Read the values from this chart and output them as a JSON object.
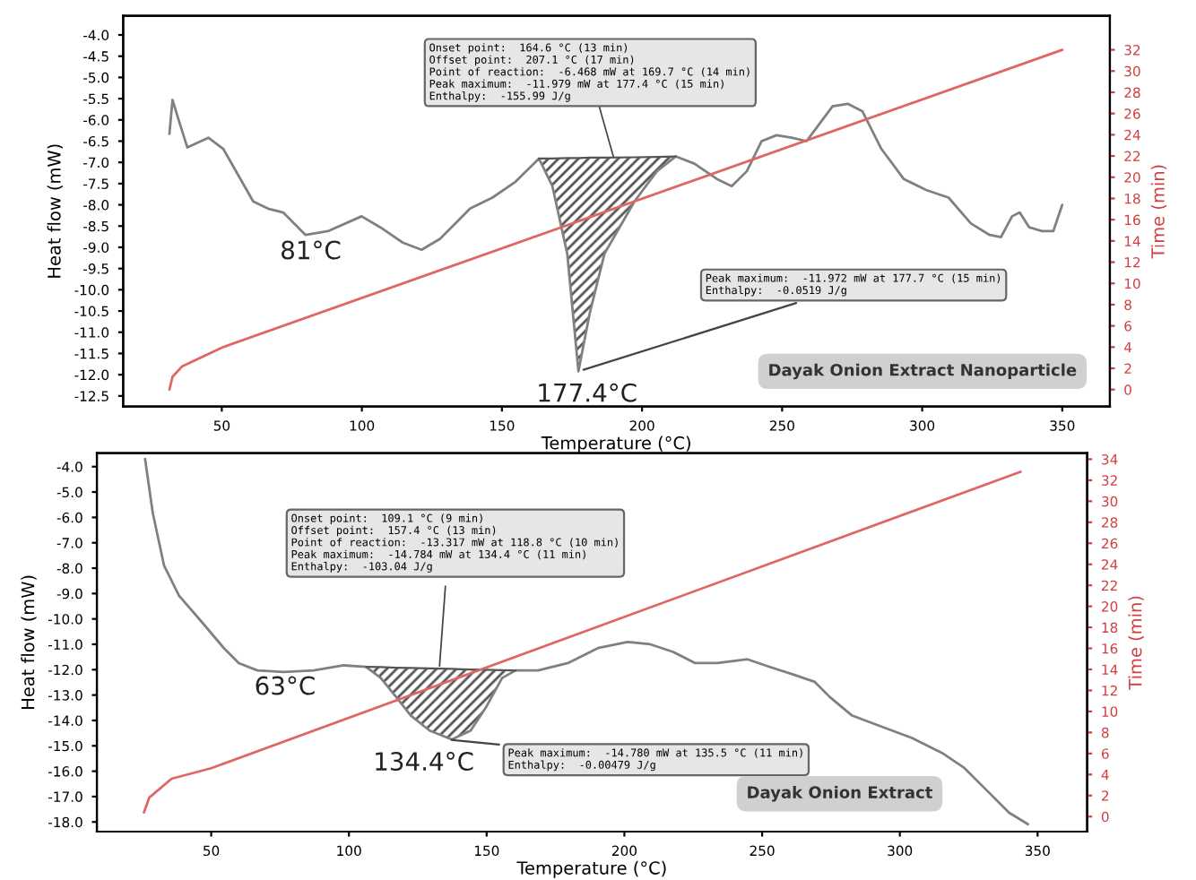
{
  "chart_data": [
    {
      "type": "line",
      "xlabel": "Temperature (°C)",
      "ylabel": "Heat flow (mW)",
      "y2label": "Time (min)",
      "xlim": [
        14.8,
        367
      ],
      "xticks": [
        50,
        100,
        150,
        200,
        250,
        300,
        350
      ],
      "ylim": [
        -12.75,
        -3.55
      ],
      "yticks": [
        {
          "value": -4.0,
          "label": "-4.0"
        },
        {
          "value": -4.5,
          "label": "-4.5"
        },
        {
          "value": -5.0,
          "label": "-5.0"
        },
        {
          "value": -5.5,
          "label": "-5.5"
        },
        {
          "value": -6.0,
          "label": "-6.0"
        },
        {
          "value": -6.5,
          "label": "-6.5"
        },
        {
          "value": -7.0,
          "label": "-7.0"
        },
        {
          "value": -7.5,
          "label": "-7.5"
        },
        {
          "value": -8.0,
          "label": "-8.0"
        },
        {
          "value": -8.5,
          "label": "-8.5"
        },
        {
          "value": -9.0,
          "label": "-9.0"
        },
        {
          "value": -9.5,
          "label": "-9.5"
        },
        {
          "value": -10.0,
          "label": "-10.0"
        },
        {
          "value": -10.5,
          "label": "-10.5"
        },
        {
          "value": -11.0,
          "label": "-11.0"
        },
        {
          "value": -11.5,
          "label": "-11.5"
        },
        {
          "value": -12.0,
          "label": "-12.0"
        },
        {
          "value": -12.5,
          "label": "-12.5"
        }
      ],
      "y2lim": [
        -1.6,
        35.2
      ],
      "y2ticks": [
        0,
        2,
        4,
        6,
        8,
        10,
        12,
        14,
        16,
        18,
        20,
        22,
        24,
        26,
        28,
        30,
        32
      ],
      "grid": false,
      "marker": "none",
      "line_style": "solid",
      "series": [
        {
          "color": "#808080",
          "x": [
            31.3,
            32.4,
            34.5,
            37.7,
            45.2,
            50.5,
            61.2,
            66.5,
            71.9,
            79.9,
            87.9,
            99.9,
            106.6,
            114.6,
            121.3,
            127.9,
            138.6,
            146.6,
            154.6,
            163.2,
            168,
            173.3,
            177.3,
            181.3,
            186.6,
            197.3,
            205.3,
            212,
            218.7,
            226.7,
            232,
            237.4,
            242.7,
            248,
            253.4,
            258.7,
            262.7,
            268,
            273.4,
            278.7,
            285.4,
            293.4,
            301.4,
            309.4,
            317.4,
            324.1,
            328.1,
            332.1,
            334.8,
            338.2,
            342.8,
            346.8,
            350
          ],
          "values": [
            -6.33,
            -5.53,
            -5.98,
            -6.65,
            -6.42,
            -6.68,
            -7.92,
            -8.09,
            -8.18,
            -8.71,
            -8.62,
            -8.27,
            -8.53,
            -8.89,
            -9.06,
            -8.8,
            -8.09,
            -7.83,
            -7.47,
            -6.91,
            -7.56,
            -9.15,
            -11.92,
            -10.56,
            -9.15,
            -7.92,
            -7.21,
            -6.86,
            -7.03,
            -7.39,
            -7.56,
            -7.21,
            -6.5,
            -6.36,
            -6.42,
            -6.5,
            -6.15,
            -5.68,
            -5.62,
            -5.8,
            -6.68,
            -7.39,
            -7.65,
            -7.83,
            -8.44,
            -8.71,
            -8.76,
            -8.27,
            -8.18,
            -8.53,
            -8.62,
            -8.62,
            -8.0
          ]
        },
        {
          "color": "#e06666",
          "axis": "y2",
          "x": [
            31.3,
            32.4,
            35.9,
            50.5,
            350
          ],
          "values": [
            0,
            1.2,
            2.2,
            4.0,
            32
          ]
        },
        {
          "color": "#555555",
          "x": [
            163.2,
            168,
            173.3,
            177.3,
            181.3,
            186.6,
            197.3,
            205.3,
            212
          ],
          "values": [
            -6.91,
            -6.91,
            -6.9,
            -6.9,
            -6.89,
            -6.89,
            -6.88,
            -6.87,
            -6.86
          ],
          "lower": [
            -6.91,
            -7.56,
            -9.15,
            -11.92,
            -10.56,
            -9.15,
            -7.92,
            -7.21,
            -6.86
          ],
          "upper": [
            -6.91,
            -6.91,
            -6.9,
            -6.9,
            -6.89,
            -6.89,
            -6.88,
            -6.87,
            -6.86
          ]
        }
      ],
      "annotations": [
        "Onset point:  164.6 °C (13 min)\nOffset point:  207.1 °C (17 min)\nPoint of reaction:  -6.468 mW at 169.7 °C (14 min)\nPeak maximum:  -11.979 mW at 177.4 °C (15 min)\nEnthalpy:  -155.99 J/g",
        {
          "text": "Peak maximum:  -11.972 mW at 177.7 °C (15 min)\nEnthalpy:  -0.0519 J/g",
          "x": 177.4,
          "y": -11.92
        },
        {
          "text": "81°C",
          "x": 79.9,
          "y": -8.71
        },
        {
          "text": "177.4°C",
          "x": 177.3,
          "y": -11.92
        },
        "Dayak Onion Extract Nanoparticle"
      ]
    },
    {
      "type": "line",
      "xlabel": "Temperature (°C)",
      "ylabel": "Heat flow (mW)",
      "y2label": "Time (min)",
      "xlim": [
        8.5,
        368
      ],
      "xticks": [
        50,
        100,
        150,
        200,
        250,
        300,
        350
      ],
      "ylim": [
        -18.38,
        -3.47
      ],
      "yticks": [
        {
          "value": -4.0,
          "label": "-4.0"
        },
        {
          "value": -5.0,
          "label": "-5.0"
        },
        {
          "value": -6.0,
          "label": "-6.0"
        },
        {
          "value": -7.0,
          "label": "-7.0"
        },
        {
          "value": -8.0,
          "label": "-8.0"
        },
        {
          "value": -9.0,
          "label": "-9.0"
        },
        {
          "value": -10.0,
          "label": "-10.0"
        },
        {
          "value": -11.0,
          "label": "-11.0"
        },
        {
          "value": -12.0,
          "label": "-12.0"
        },
        {
          "value": -13.0,
          "label": "-13.0"
        },
        {
          "value": -14.0,
          "label": "-14.0"
        },
        {
          "value": -15.0,
          "label": "-15.0"
        },
        {
          "value": -16.0,
          "label": "-16.0"
        },
        {
          "value": -17.0,
          "label": "-17.0"
        },
        {
          "value": -18.0,
          "label": "-18.0"
        }
      ],
      "y2lim": [
        -1.43,
        34.57
      ],
      "y2ticks": [
        0,
        2,
        4,
        6,
        8,
        10,
        12,
        14,
        16,
        18,
        20,
        22,
        24,
        26,
        28,
        30,
        32,
        34
      ],
      "grid": false,
      "marker": "none",
      "line_style": "solid",
      "series": [
        {
          "color": "#808080",
          "x": [
            26,
            28.8,
            32.9,
            38.3,
            46.5,
            54.6,
            60,
            66.8,
            76.3,
            87.2,
            98.1,
            106.2,
            111.6,
            117.1,
            122.5,
            129.3,
            137.4,
            144.2,
            149.6,
            155.6,
            160.5,
            168.7,
            179.5,
            190.4,
            201.2,
            209.4,
            217.5,
            225.7,
            233.8,
            244.7,
            252.8,
            261,
            269.1,
            274.5,
            282.7,
            293.5,
            304.4,
            315.3,
            323.4,
            331.6,
            339.7,
            346.5
          ],
          "values": [
            -3.7,
            -5.83,
            -7.9,
            -9.08,
            -10.11,
            -11.15,
            -11.74,
            -12.03,
            -12.09,
            -12.03,
            -11.83,
            -11.89,
            -12.33,
            -13.07,
            -13.81,
            -14.4,
            -14.75,
            -14.4,
            -13.51,
            -12.33,
            -12.03,
            -12.03,
            -11.74,
            -11.15,
            -10.91,
            -11.0,
            -11.29,
            -11.74,
            -11.74,
            -11.59,
            -11.89,
            -12.18,
            -12.48,
            -13.07,
            -13.81,
            -14.25,
            -14.69,
            -15.28,
            -15.87,
            -16.76,
            -17.64,
            -18.09
          ]
        },
        {
          "color": "#e06666",
          "axis": "y2",
          "x": [
            25.6,
            27.5,
            35.6,
            50,
            343.8
          ],
          "values": [
            0.4,
            1.8,
            3.6,
            4.6,
            32.8
          ]
        },
        {
          "color": "#555555",
          "x": [
            106.2,
            111.6,
            117.1,
            122.5,
            129.3,
            137.4,
            144.2,
            149.6,
            155.6,
            160.5
          ],
          "values": [
            -11.89,
            -11.9,
            -11.92,
            -11.93,
            -11.95,
            -11.97,
            -11.99,
            -12.0,
            -12.02,
            -12.03
          ],
          "lower": [
            -11.89,
            -12.33,
            -13.07,
            -13.81,
            -14.4,
            -14.75,
            -14.4,
            -13.51,
            -12.33,
            -12.03
          ],
          "upper": [
            -11.89,
            -11.9,
            -11.92,
            -11.93,
            -11.95,
            -11.97,
            -11.99,
            -12.0,
            -12.02,
            -12.03
          ]
        }
      ],
      "annotations": [
        "Onset point:  109.1 °C (9 min)\nOffset point:  157.4 °C (13 min)\nPoint of reaction:  -13.317 mW at 118.8 °C (10 min)\nPeak maximum:  -14.784 mW at 134.4 °C (11 min)\nEnthalpy:  -103.04 J/g",
        {
          "text": "Peak maximum:  -14.780 mW at 135.5 °C (11 min)\nEnthalpy:  -0.00479 J/g",
          "x": 135.5,
          "y": -14.75
        },
        {
          "text": "63°C",
          "x": 66.8,
          "y": -12.03
        },
        {
          "text": "134.4°C",
          "x": 137.4,
          "y": -14.75
        },
        "Dayak Onion Extract"
      ]
    }
  ]
}
